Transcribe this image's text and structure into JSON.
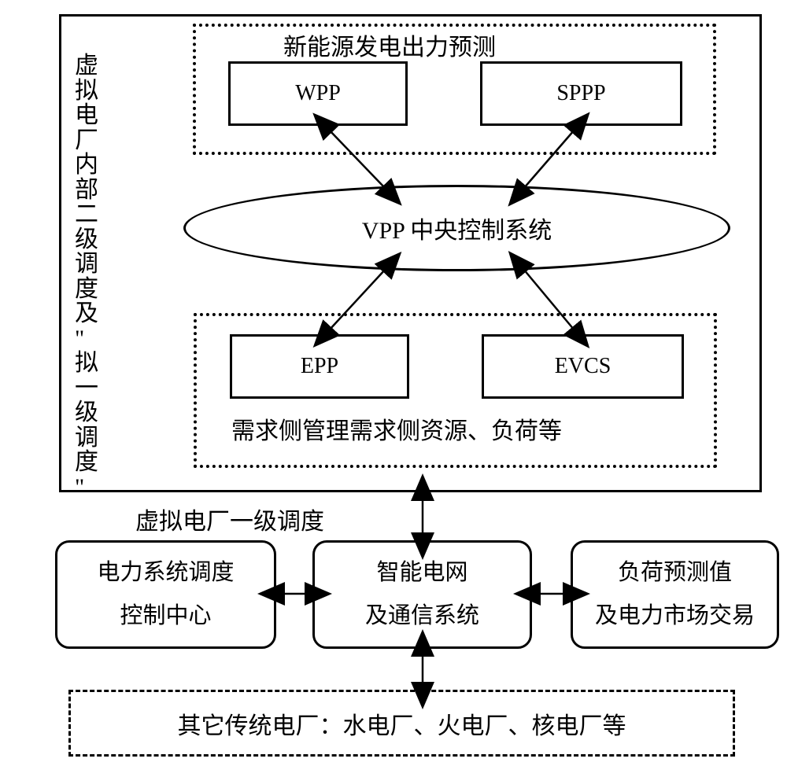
{
  "diagram": {
    "type": "flowchart",
    "background_color": "#ffffff",
    "border_color": "#000000",
    "text_color": "#000000",
    "font_family": "SimSun",
    "main_fontsize": 30,
    "box_fontsize": 28,
    "vertical_label": "虚拟电厂内部二级调度及\"拟一级调度\"",
    "top_group": {
      "title": "新能源发电出力预测",
      "border_style": "dotted",
      "boxes": [
        "WPP",
        "SPPP"
      ]
    },
    "center_ellipse": {
      "label": "VPP 中央控制系统"
    },
    "bottom_group": {
      "border_style": "dotted",
      "boxes": [
        "EPP",
        "EVCS"
      ],
      "title": "需求侧管理需求侧资源、负荷等"
    },
    "connector_label": "虚拟电厂一级调度",
    "bottom_row": [
      {
        "line1": "电力系统调度",
        "line2": "控制中心"
      },
      {
        "line1": "智能电网",
        "line2": "及通信系统"
      },
      {
        "line1": "负荷预测值",
        "line2": "及电力市场交易"
      }
    ],
    "dashed_bottom": {
      "label": "其它传统电厂：水电厂、火电厂、核电厂等",
      "border_style": "dashed"
    },
    "arrows": {
      "style": "bidirectional",
      "fill": "#000000",
      "connections": [
        {
          "from": "WPP",
          "to": "VPP-ellipse"
        },
        {
          "from": "SPPP",
          "to": "VPP-ellipse"
        },
        {
          "from": "VPP-ellipse",
          "to": "EPP"
        },
        {
          "from": "VPP-ellipse",
          "to": "EVCS"
        },
        {
          "from": "main-box",
          "to": "smart-grid"
        },
        {
          "from": "dispatch-center",
          "to": "smart-grid"
        },
        {
          "from": "smart-grid",
          "to": "load-forecast"
        },
        {
          "from": "smart-grid",
          "to": "traditional-plants"
        }
      ]
    }
  }
}
